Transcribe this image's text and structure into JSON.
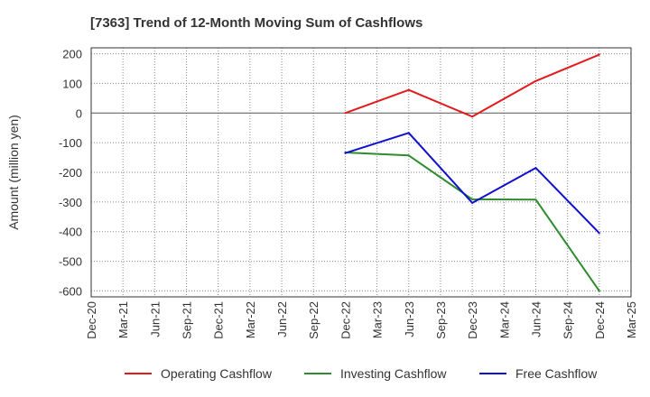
{
  "chart_data": {
    "type": "line",
    "title": "[7363]  Trend of 12-Month Moving Sum of Cashflows",
    "xlabel": "",
    "ylabel": "Amount (million yen)",
    "x_ticks": [
      "Dec-20",
      "Mar-21",
      "Jun-21",
      "Sep-21",
      "Dec-21",
      "Mar-22",
      "Jun-22",
      "Sep-22",
      "Dec-22",
      "Mar-23",
      "Jun-23",
      "Sep-23",
      "Dec-23",
      "Mar-24",
      "Jun-24",
      "Sep-24",
      "Dec-24",
      "Mar-25"
    ],
    "y_ticks": [
      200,
      100,
      0,
      -100,
      -200,
      -300,
      -400,
      -500,
      -600
    ],
    "ylim": [
      -620,
      220
    ],
    "grid": true,
    "legend_position": "bottom",
    "series": [
      {
        "name": "Operating Cashflow",
        "color": "#e31a1c",
        "x": [
          "Dec-22",
          "Jun-23",
          "Dec-23",
          "Jun-24",
          "Dec-24"
        ],
        "y": [
          0,
          78,
          -12,
          108,
          197
        ]
      },
      {
        "name": "Investing Cashflow",
        "color": "#2e8b2e",
        "x": [
          "Dec-22",
          "Jun-23",
          "Dec-23",
          "Jun-24",
          "Dec-24"
        ],
        "y": [
          -133,
          -143,
          -291,
          -292,
          -600
        ]
      },
      {
        "name": "Free Cashflow",
        "color": "#1010d0",
        "x": [
          "Dec-22",
          "Jun-23",
          "Dec-23",
          "Jun-24",
          "Dec-24"
        ],
        "y": [
          -135,
          -67,
          -303,
          -185,
          -405
        ]
      }
    ]
  }
}
